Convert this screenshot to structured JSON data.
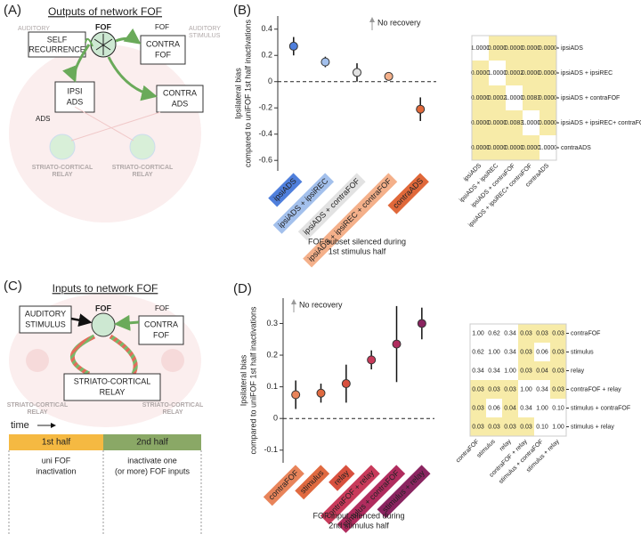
{
  "panels": {
    "A": "(A)",
    "B": "(B)",
    "C": "(C)",
    "D": "(D)"
  },
  "diagram_A": {
    "title": "Outputs of network FOF",
    "auditory_left": "AUDITORY",
    "auditory_right": [
      "AUDITORY",
      "STIMULUS"
    ],
    "self_recurrence": [
      "SELF",
      "RECURRENCE"
    ],
    "fof": "FOF",
    "fof_right": "FOF",
    "contra_fof": [
      "CONTRA",
      "FOF"
    ],
    "ipsi_ads": [
      "IPSI",
      "ADS"
    ],
    "contra_ads": [
      "CONTRA",
      "ADS"
    ],
    "ads": "ADS",
    "relay_left": [
      "STRIATO-CORTICAL",
      "RELAY"
    ],
    "relay_right": [
      "STRIATO-CORTICAL",
      "RELAY"
    ]
  },
  "diagram_C": {
    "title": "Inputs to network FOF",
    "auditory_stimulus": [
      "AUDITORY",
      "STIMULUS"
    ],
    "fof": "FOF",
    "fof_right": "FOF",
    "contra_fof": [
      "CONTRA",
      "FOF"
    ],
    "relay": [
      "STRIATO-CORTICAL",
      "RELAY"
    ],
    "relay_left": [
      "STRIATO-CORTICAL",
      "RELAY"
    ],
    "relay_right": [
      "STRIATO-CORTICAL",
      "RELAY"
    ]
  },
  "timeline": {
    "time": "time",
    "first": "1st half",
    "second": "2nd half",
    "first_desc": [
      "uni FOF",
      "inactivation"
    ],
    "second_desc": [
      "inactivate one",
      "(or more) FOF inputs"
    ],
    "first_color": "#f5b942",
    "second_color": "#8aa866"
  },
  "chart_data": [
    {
      "type": "errorbar",
      "ylabel": [
        "Ipsilateral bias",
        "compared to uniFOF 1st half inactivations"
      ],
      "xlabel": [
        "FOF subset silenced during",
        "1st stimulus half"
      ],
      "annotation": "No recovery",
      "categories": [
        "ipsiADS",
        "ipsiADS + ipsiREC",
        "ipsiADS + contraFOF",
        "ipsiADS + ipsiREC + contraFOF",
        "contraADS"
      ],
      "values": [
        0.27,
        0.15,
        0.07,
        0.04,
        -0.21
      ],
      "errors": [
        0.07,
        0.04,
        0.07,
        0.03,
        0.09
      ],
      "colors": [
        "#4f7fdc",
        "#a3c0ec",
        "#e2e2e2",
        "#f4b08a",
        "#e0683a"
      ],
      "ylim": [
        -0.68,
        0.5
      ],
      "yticks": [
        -0.6,
        -0.4,
        -0.2,
        0,
        0.2,
        0.4
      ]
    },
    {
      "type": "errorbar",
      "ylabel": [
        "Ipsilateral bias",
        "compared to uniFOF 1st half inactivations"
      ],
      "xlabel": [
        "FOF input silenced during",
        "2nd stimulus half"
      ],
      "annotation": "No recovery",
      "categories": [
        "contraFOF",
        "stimulus",
        "relay",
        "contraFOF + relay",
        "stimulus + contraFOF",
        "stimulus + relay"
      ],
      "values": [
        0.075,
        0.08,
        0.11,
        0.185,
        0.235,
        0.3
      ],
      "errors": [
        0.045,
        0.03,
        0.06,
        0.03,
        0.12,
        0.05
      ],
      "colors": [
        "#e8845a",
        "#e06a40",
        "#d8503e",
        "#c83a5a",
        "#b02c5e",
        "#8a2460"
      ],
      "ylim": [
        -0.14,
        0.38
      ],
      "yticks": [
        -0.1,
        0,
        0.1,
        0.2,
        0.3
      ]
    }
  ],
  "matrices": [
    {
      "labels": [
        "ipsiADS",
        "ipsiADS + ipsiREC",
        "ipsiADS + contraFOF",
        "ipsiADS + ipsiREC+ contraFOF",
        "contraADS"
      ],
      "highlight": "#f7eba8",
      "cells": [
        [
          "1.0000",
          "0.0000",
          "0.0000",
          "0.0000",
          "0.0000"
        ],
        [
          "0.0000",
          "1.0000",
          "0.0002",
          "0.0000",
          "0.0000"
        ],
        [
          "0.0000",
          "0.0002",
          "1.0000",
          "0.0083",
          "0.0000"
        ],
        [
          "0.0000",
          "0.0000",
          "0.0083",
          "1.0000",
          "0.0000"
        ],
        [
          "0.0000",
          "0.0000",
          "0.0000",
          "0.0000",
          "1.0000"
        ]
      ]
    },
    {
      "labels": [
        "contraFOF",
        "stimulus",
        "relay",
        "contraFOF + relay",
        "stimulus + contraFOF",
        "stimulus + relay"
      ],
      "highlight": "#f7eba8",
      "cells": [
        [
          "1.00",
          "0.62",
          "0.34",
          "0.03",
          "0.03",
          "0.03"
        ],
        [
          "0.62",
          "1.00",
          "0.34",
          "0.03",
          "0.06",
          "0.03"
        ],
        [
          "0.34",
          "0.34",
          "1.00",
          "0.03",
          "0.04",
          "0.03"
        ],
        [
          "0.03",
          "0.03",
          "0.03",
          "1.00",
          "0.34",
          "0.03"
        ],
        [
          "0.03",
          "0.06",
          "0.04",
          "0.34",
          "1.00",
          "0.10"
        ],
        [
          "0.03",
          "0.03",
          "0.03",
          "0.03",
          "0.10",
          "1.00"
        ]
      ]
    }
  ]
}
